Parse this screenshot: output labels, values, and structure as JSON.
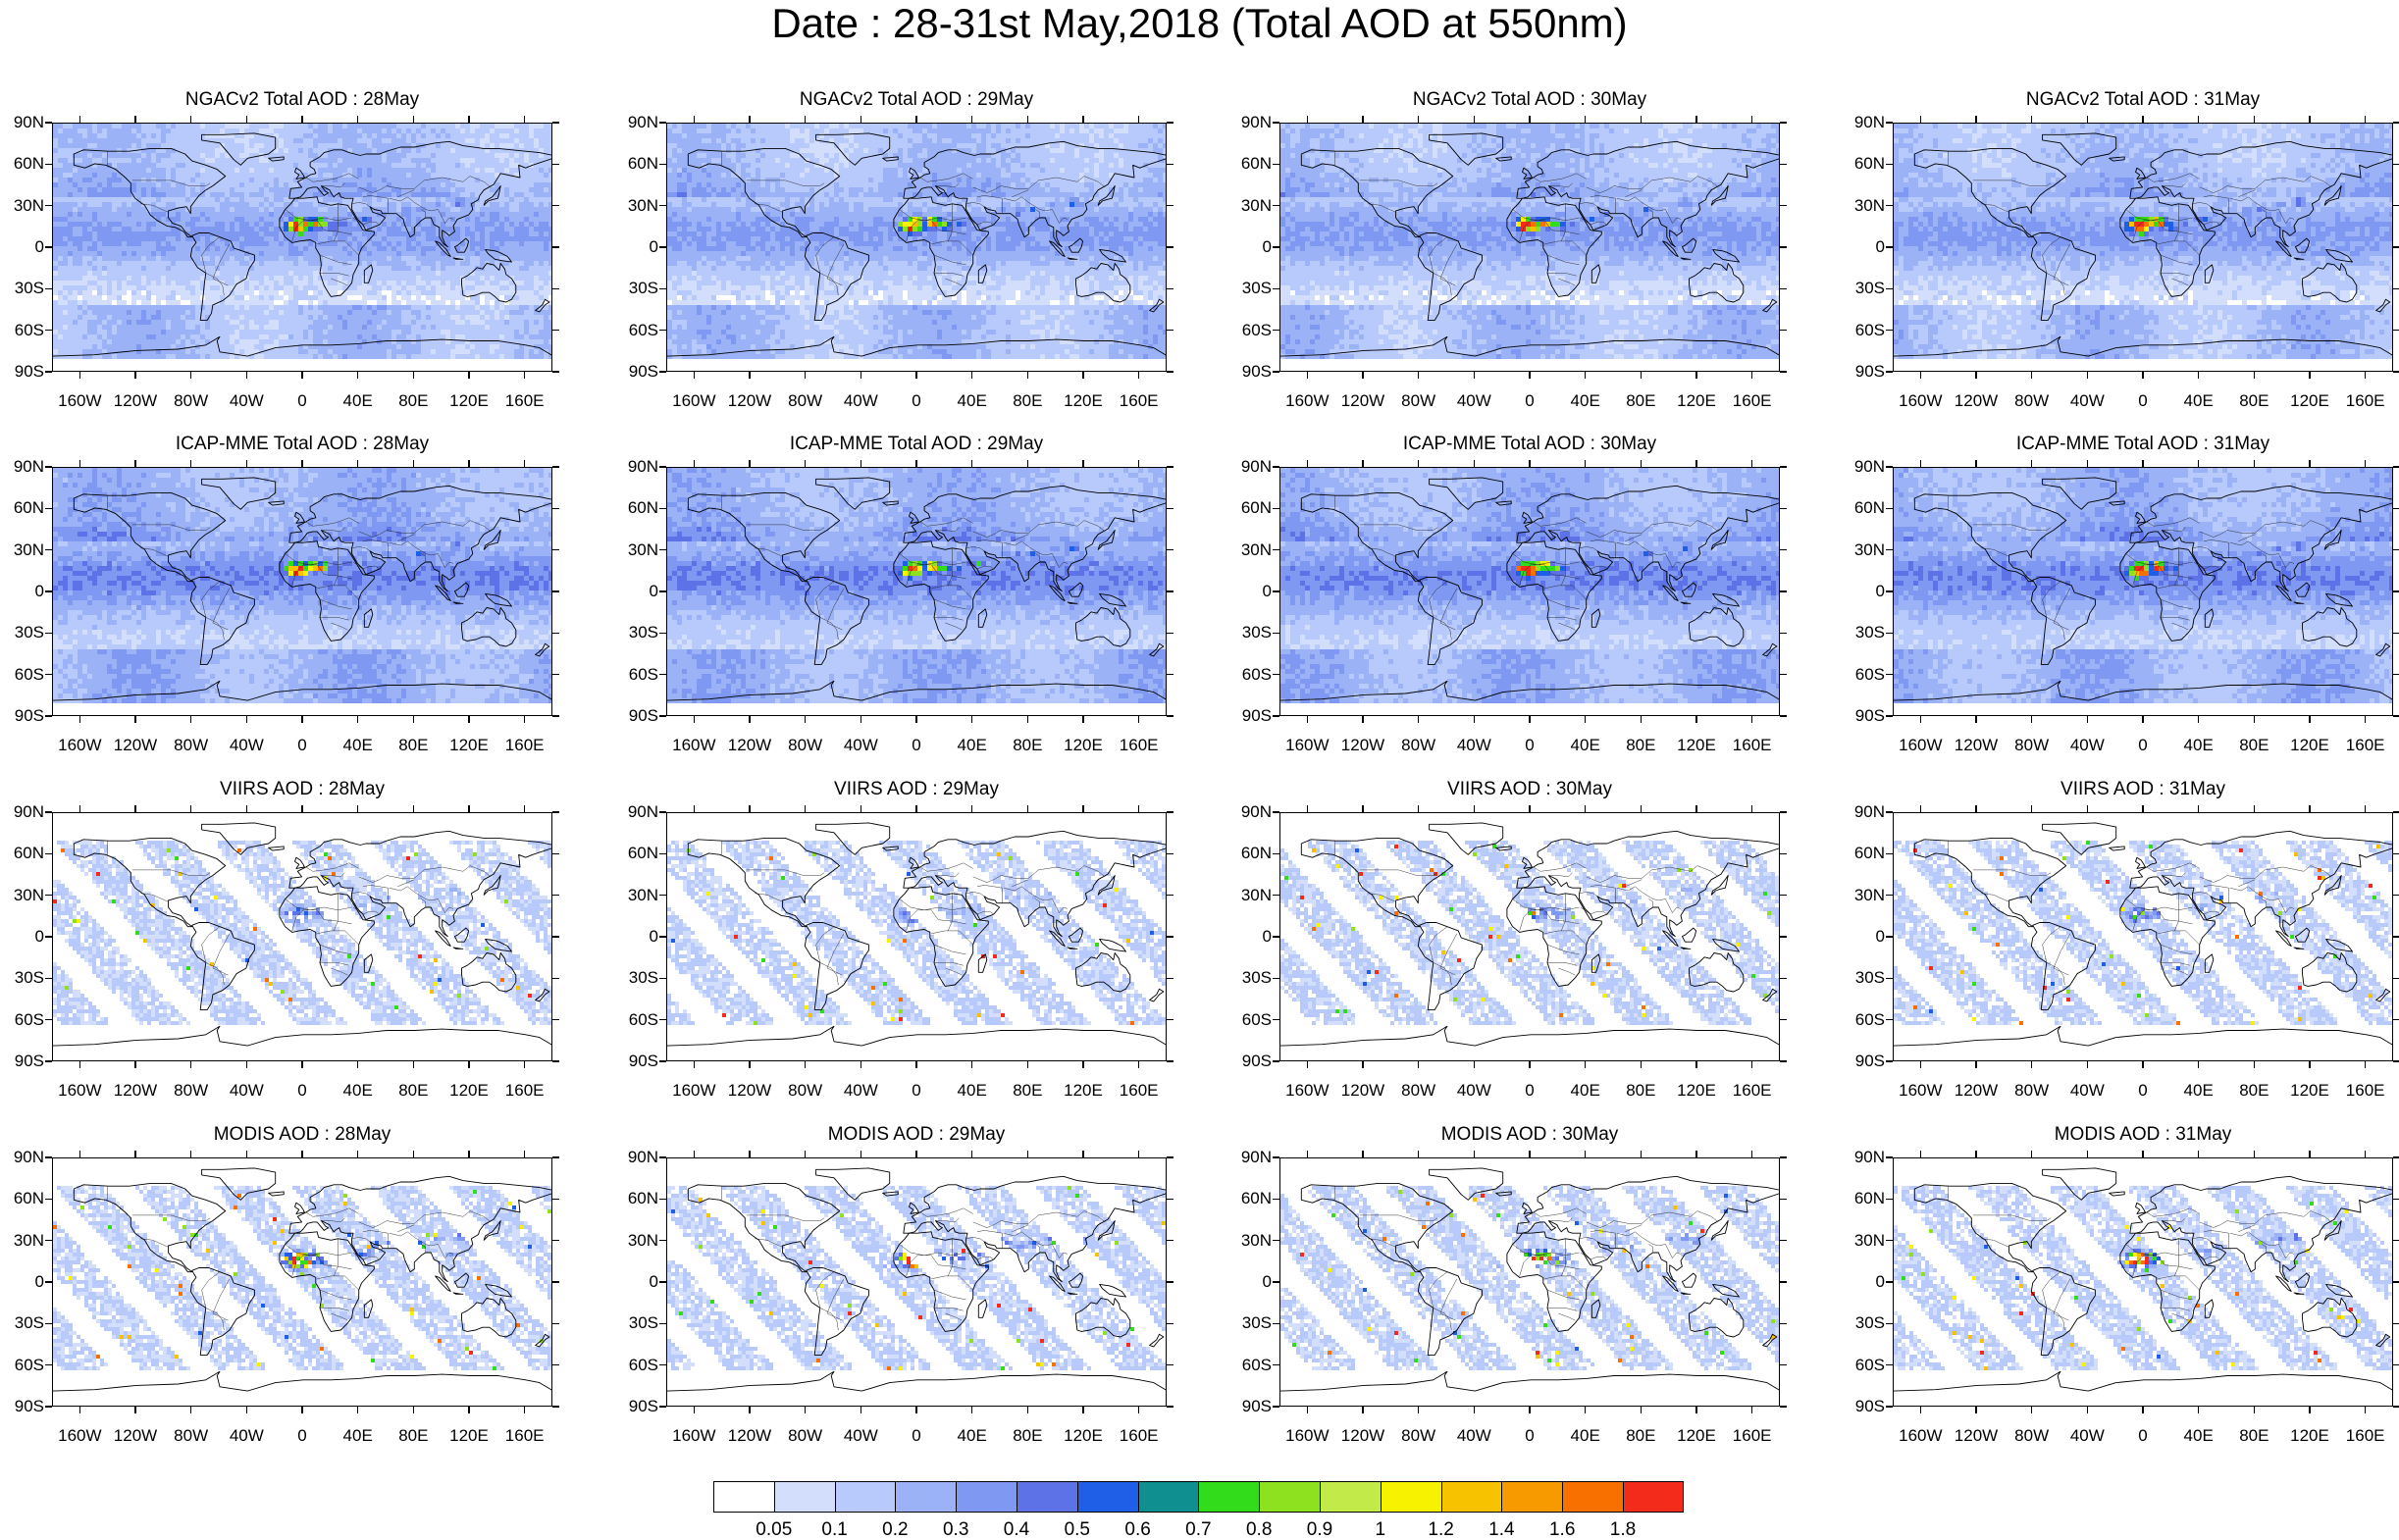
{
  "title": "Date : 28-31st May,2018 (Total AOD at 550nm)",
  "lat_ticks": [
    "90N",
    "60N",
    "30N",
    "0",
    "30S",
    "60S",
    "90S"
  ],
  "lon_ticks": [
    "160W",
    "120W",
    "80W",
    "40W",
    "0",
    "40E",
    "80E",
    "120E",
    "160E"
  ],
  "rows": [
    {
      "product": "NGACv2",
      "panels": [
        {
          "title": "NGACv2 Total AOD : 28May"
        },
        {
          "title": "NGACv2 Total AOD : 29May"
        },
        {
          "title": "NGACv2 Total AOD : 30May"
        },
        {
          "title": "NGACv2 Total AOD : 31May"
        }
      ]
    },
    {
      "product": "ICAP-MME",
      "panels": [
        {
          "title": "ICAP-MME Total AOD : 28May"
        },
        {
          "title": "ICAP-MME Total AOD : 29May"
        },
        {
          "title": "ICAP-MME Total AOD : 30May"
        },
        {
          "title": "ICAP-MME Total AOD : 31May"
        }
      ]
    },
    {
      "product": "VIIRS",
      "panels": [
        {
          "title": "VIIRS AOD : 28May"
        },
        {
          "title": "VIIRS AOD : 29May"
        },
        {
          "title": "VIIRS AOD : 30May"
        },
        {
          "title": "VIIRS AOD : 31May"
        }
      ]
    },
    {
      "product": "MODIS",
      "panels": [
        {
          "title": "MODIS AOD : 28May"
        },
        {
          "title": "MODIS AOD : 29May"
        },
        {
          "title": "MODIS AOD : 30May"
        },
        {
          "title": "MODIS AOD : 31May"
        }
      ]
    }
  ],
  "colorbar": {
    "labels": [
      "0.05",
      "0.1",
      "0.2",
      "0.3",
      "0.4",
      "0.5",
      "0.6",
      "0.7",
      "0.8",
      "0.9",
      "1",
      "1.2",
      "1.4",
      "1.6",
      "1.8"
    ],
    "colors": [
      "#ffffff",
      "#d3defd",
      "#b8c9fb",
      "#9bb2f7",
      "#7f98f1",
      "#5c72e6",
      "#1f5fe8",
      "#0f8f8f",
      "#33dc1a",
      "#8de11e",
      "#c2ea48",
      "#f7f200",
      "#f7c200",
      "#f79a00",
      "#f77000",
      "#f22b1a"
    ]
  }
}
